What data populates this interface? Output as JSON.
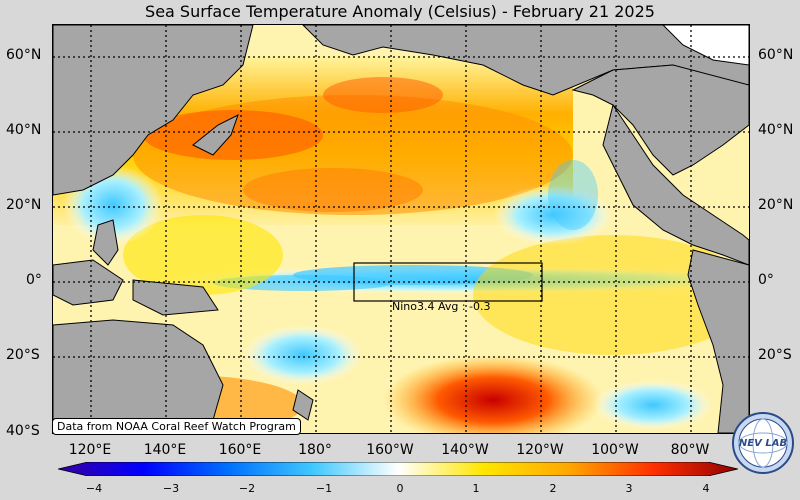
{
  "title": "Sea Surface Temperature Anomaly (Celsius) - February 21 2025",
  "credit": "Data from NOAA Coral Reef Watch Program",
  "nino_label": "Nino3.4 Avg : -0.3",
  "lat_labels": [
    "60°N",
    "40°N",
    "20°N",
    "0°",
    "20°S",
    "40°S"
  ],
  "lon_labels": [
    "120°E",
    "140°E",
    "160°E",
    "180°",
    "160°W",
    "140°W",
    "120°W",
    "100°W",
    "80°W"
  ],
  "colorbar_ticks": [
    "−4",
    "−3",
    "−2",
    "−1",
    "0",
    "1",
    "2",
    "3",
    "4"
  ],
  "logo_text": "NEV LAB",
  "colors": {
    "land": "#a6a6a6",
    "ocean_neutral": "#ffffff",
    "warm_1": "#ffe600",
    "warm_2": "#ffa800",
    "warm_3": "#ff5a00",
    "warm_4": "#c80000",
    "cool_1": "#a8f0ff",
    "cool_2": "#40c8ff",
    "cool_3": "#0050ff",
    "cool_4": "#3800a0"
  }
}
